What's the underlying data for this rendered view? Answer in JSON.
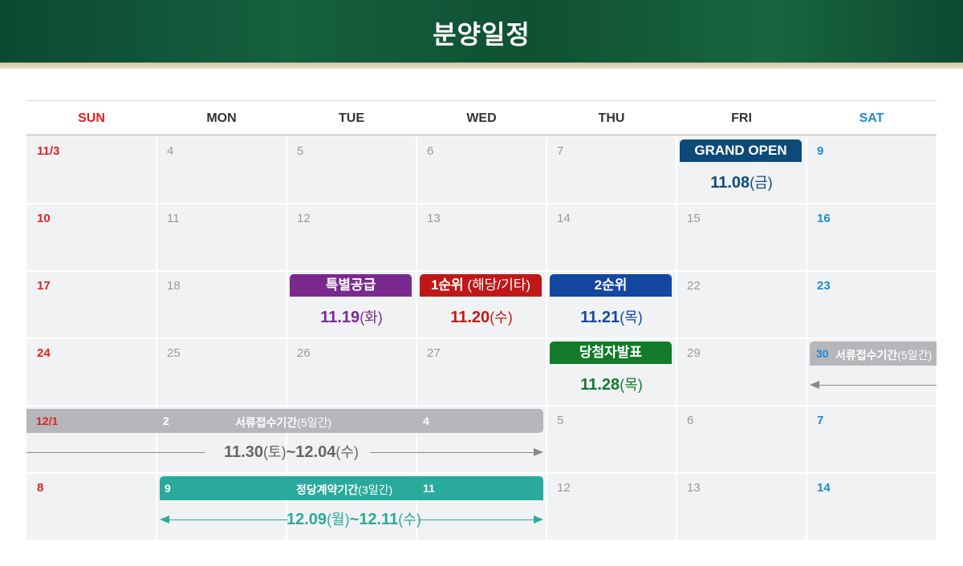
{
  "header": {
    "title": "분양일정"
  },
  "weekdays": [
    "SUN",
    "MON",
    "TUE",
    "WED",
    "THU",
    "FRI",
    "SAT"
  ],
  "weeks": [
    [
      "11/3",
      "4",
      "5",
      "6",
      "7",
      "",
      "9"
    ],
    [
      "10",
      "11",
      "12",
      "13",
      "14",
      "15",
      "16"
    ],
    [
      "17",
      "18",
      "",
      "",
      "",
      "22",
      "23"
    ],
    [
      "24",
      "25",
      "26",
      "27",
      "",
      "29",
      ""
    ],
    [
      "",
      "",
      "",
      "",
      "5",
      "6",
      "7"
    ],
    [
      "8",
      "",
      "",
      "",
      "12",
      "13",
      "14"
    ]
  ],
  "events": {
    "grand_open": {
      "label": "GRAND OPEN",
      "date": "11.08",
      "dow": "(금)",
      "color": "#0c4a7a"
    },
    "special": {
      "label": "특별공급",
      "date": "11.19",
      "dow": "(화)",
      "color": "#7a2a8f"
    },
    "first": {
      "label": "1순위",
      "sub": " (해당/기타)",
      "date": "11.20",
      "dow": "(수)",
      "color": "#c01818"
    },
    "second": {
      "label": "2순위",
      "date": "11.21",
      "dow": "(목)",
      "color": "#1347a0"
    },
    "winners": {
      "label": "당첨자발표",
      "date": "11.28",
      "dow": "(목)",
      "color": "#137a2a"
    },
    "docs_w4": {
      "num": "30",
      "label": "서류접수기간",
      "sub": "(5일간)",
      "color": "#b5b7ba"
    },
    "docs_w5": {
      "num1": "12/1",
      "num2": "2",
      "num3": "4",
      "label": "서류접수기간",
      "sub": "(5일간)",
      "range": "11.30",
      "range_dow1": "(토)",
      "range_sep": "~",
      "range_end": "12.04",
      "range_dow2": "(수)",
      "color": "#b5b7ba",
      "text_color": "#666666"
    },
    "contract": {
      "num1": "9",
      "num2": "11",
      "label": "정당계약기간",
      "sub": "(3일간)",
      "range": "12.09",
      "range_dow1": "(월)",
      "range_sep": "~",
      "range_end": "12.11",
      "range_dow2": "(수)",
      "color": "#2aaa9c"
    }
  }
}
